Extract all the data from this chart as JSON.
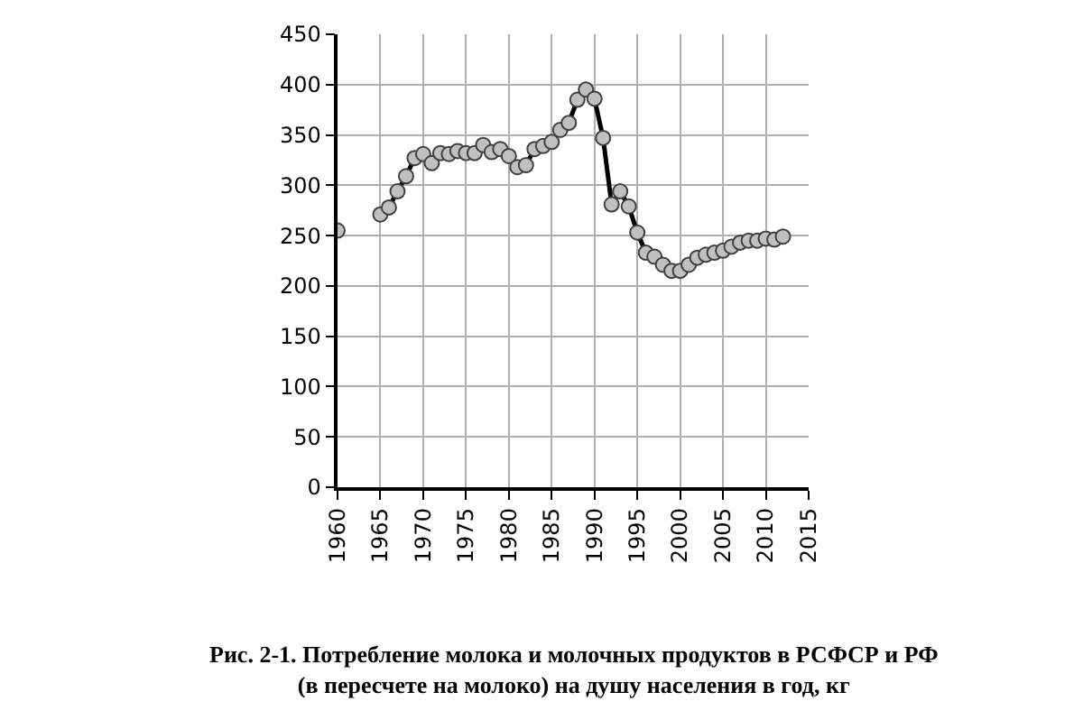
{
  "chart_data": {
    "type": "line",
    "x": [
      1960,
      1961,
      1962,
      1963,
      1964,
      1965,
      1966,
      1967,
      1968,
      1969,
      1970,
      1971,
      1972,
      1973,
      1974,
      1975,
      1976,
      1977,
      1978,
      1979,
      1980,
      1981,
      1982,
      1983,
      1984,
      1985,
      1986,
      1987,
      1988,
      1989,
      1990,
      1991,
      1992,
      1993,
      1994,
      1995,
      1996,
      1997,
      1998,
      1999,
      2000,
      2001,
      2002,
      2003,
      2004,
      2005,
      2006,
      2007,
      2008,
      2009,
      2010,
      2011,
      2012
    ],
    "series": [
      {
        "color": "#c0c0c0",
        "values": [
          255,
          null,
          null,
          null,
          null,
          271,
          278,
          294,
          309,
          327,
          331,
          322,
          332,
          331,
          334,
          332,
          332,
          340,
          333,
          336,
          329,
          318,
          320,
          336,
          339,
          343,
          355,
          362,
          385,
          395,
          386,
          347,
          281,
          294,
          279,
          253,
          233,
          229,
          221,
          215,
          215,
          221,
          228,
          231,
          233,
          235,
          239,
          243,
          245,
          245,
          247,
          246,
          249
        ]
      }
    ],
    "xlim": [
      1960,
      2015
    ],
    "xticks": [
      1960,
      1965,
      1970,
      1975,
      1980,
      1985,
      1990,
      1995,
      2000,
      2005,
      2010,
      2015
    ],
    "ylim": [
      0,
      450
    ],
    "yticks": [
      0,
      50,
      100,
      150,
      200,
      250,
      300,
      350,
      400,
      450
    ],
    "grid": true,
    "marker": "circle",
    "line_style": "solid",
    "annotations": [
      "Рис. 2-1. Потребление молока и молочных продуктов в РСФСР и РФ\n(в пересчете на молоко) на душу населения в год, кг"
    ]
  }
}
